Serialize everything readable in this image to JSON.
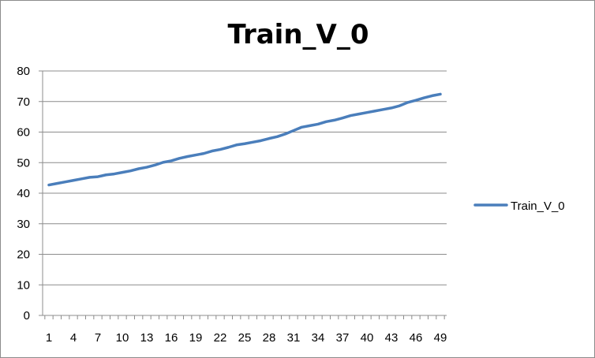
{
  "chart_data": {
    "type": "line",
    "title": "Train_V_0",
    "xlabel": "",
    "ylabel": "",
    "x": [
      1,
      2,
      3,
      4,
      5,
      6,
      7,
      8,
      9,
      10,
      11,
      12,
      13,
      14,
      15,
      16,
      17,
      18,
      19,
      20,
      21,
      22,
      23,
      24,
      25,
      26,
      27,
      28,
      29,
      30,
      31,
      32,
      33,
      34,
      35,
      36,
      37,
      38,
      39,
      40,
      41,
      42,
      43,
      44,
      45,
      46,
      47,
      48,
      49
    ],
    "x_tick_labels": [
      "1",
      "4",
      "7",
      "10",
      "13",
      "16",
      "19",
      "22",
      "25",
      "28",
      "31",
      "34",
      "37",
      "40",
      "43",
      "46",
      "49"
    ],
    "y_tick_labels": [
      "0",
      "10",
      "20",
      "30",
      "40",
      "50",
      "60",
      "70",
      "80"
    ],
    "ylim": [
      0,
      80
    ],
    "grid": true,
    "legend_position": "right",
    "series": [
      {
        "name": "Train_V_0",
        "color": "#4a7ebb",
        "values": [
          42.7,
          43.2,
          43.7,
          44.2,
          44.7,
          45.2,
          45.4,
          46.0,
          46.3,
          46.8,
          47.3,
          48.0,
          48.5,
          49.2,
          50.1,
          50.6,
          51.4,
          52.0,
          52.5,
          53.0,
          53.8,
          54.3,
          55.0,
          55.8,
          56.2,
          56.7,
          57.2,
          57.9,
          58.5,
          59.4,
          60.5,
          61.6,
          62.1,
          62.6,
          63.4,
          63.9,
          64.6,
          65.4,
          65.9,
          66.4,
          66.9,
          67.4,
          67.9,
          68.6,
          69.7,
          70.4,
          71.2,
          71.9,
          72.4
        ]
      }
    ]
  }
}
